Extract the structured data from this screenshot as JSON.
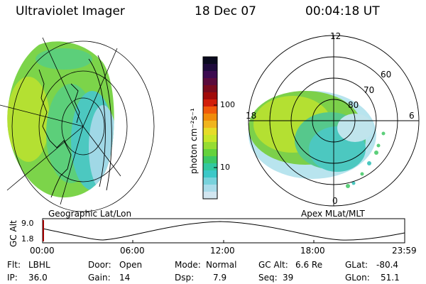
{
  "header": {
    "instrument": "Ultraviolet Imager",
    "date": "18 Dec 07",
    "time": "00:04:18 UT"
  },
  "left_map": {
    "caption": "Geographic Lat/Lon"
  },
  "right_map": {
    "caption": "Apex MLat/MLT",
    "mlt_labels": {
      "top": "12",
      "left": "18",
      "right": "6",
      "bottom": "0"
    },
    "lat_labels": [
      "60",
      "70",
      "80"
    ]
  },
  "colorbar": {
    "unit_label": "photon cm⁻²s⁻¹",
    "ticks": [
      "100",
      "10"
    ],
    "colors": [
      "#0a0a1e",
      "#1e0a3c",
      "#3c0a50",
      "#5a0a3c",
      "#780a1e",
      "#a00a0a",
      "#d21e0a",
      "#f05a0a",
      "#f08c0a",
      "#f0b41e",
      "#e6dc28",
      "#c8e628",
      "#96dc32",
      "#64d23c",
      "#3cc864",
      "#32c8a0",
      "#3cc8c8",
      "#78d2dc",
      "#aadcea",
      "#d2e6f0"
    ]
  },
  "altitude_plot": {
    "ylabel": "GC Alt",
    "yticks": [
      "9.0",
      "1.8"
    ],
    "xticks": [
      "00:00",
      "06:00",
      "12:00",
      "18:00",
      "23:59"
    ]
  },
  "info": {
    "flt_label": "Flt:",
    "flt_value": "LBHL",
    "ip_label": "IP:",
    "ip_value": "36.0",
    "door_label": "Door:",
    "door_value": "Open",
    "gain_label": "Gain:",
    "gain_value": "14",
    "mode_label": "Mode:",
    "mode_value": "Normal",
    "dsp_label": "Dsp:",
    "dsp_value": "7.9",
    "gcalt_label": "GC Alt:",
    "gcalt_value": "6.6 Re",
    "seq_label": "Seq:",
    "seq_value": "39",
    "glat_label": "GLat:",
    "glat_value": "-80.4",
    "glon_label": "GLon:",
    "glon_value": "51.1"
  }
}
